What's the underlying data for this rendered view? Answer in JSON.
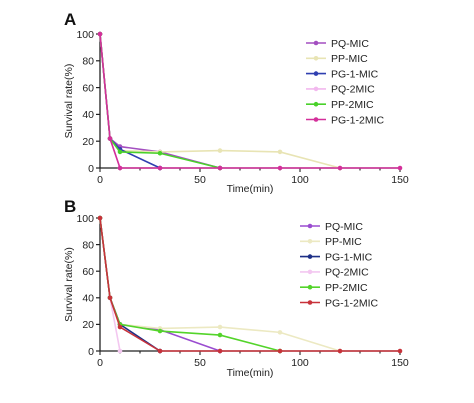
{
  "chart_data": [
    {
      "panel": "A",
      "type": "line",
      "xlabel": "Time(min)",
      "ylabel": "Survival rate(%)",
      "xlim": [
        0,
        150
      ],
      "ylim": [
        0,
        100
      ],
      "x_ticks": [
        0,
        50,
        100,
        150
      ],
      "y_ticks": [
        0,
        20,
        40,
        60,
        80,
        100
      ],
      "legend_position": "top-right",
      "series": [
        {
          "name": "PQ-MIC",
          "color": "#a34fc0",
          "x": [
            0,
            5,
            10,
            30,
            60
          ],
          "y": [
            100,
            22,
            16,
            12,
            0
          ]
        },
        {
          "name": "PP-MIC",
          "color": "#e8e4b4",
          "x": [
            0,
            5,
            10,
            30,
            60,
            90,
            120
          ],
          "y": [
            100,
            22,
            13,
            12,
            13,
            12,
            0
          ]
        },
        {
          "name": "PG-1-MIC",
          "color": "#2f3fb0",
          "x": [
            0,
            5,
            10,
            30
          ],
          "y": [
            100,
            22,
            14,
            0
          ]
        },
        {
          "name": "PQ-2MIC",
          "color": "#f2b8ee",
          "x": [
            0,
            5,
            10
          ],
          "y": [
            100,
            22,
            0
          ]
        },
        {
          "name": "PP-2MIC",
          "color": "#49d12a",
          "x": [
            0,
            5,
            10,
            30,
            60
          ],
          "y": [
            100,
            22,
            12,
            11,
            0
          ]
        },
        {
          "name": "PG-1-2MIC",
          "color": "#d42f9a",
          "x": [
            0,
            5,
            10,
            30,
            60,
            90,
            120,
            150
          ],
          "y": [
            100,
            22,
            0,
            0,
            0,
            0,
            0,
            0
          ]
        }
      ]
    },
    {
      "panel": "B",
      "type": "line",
      "xlabel": "Time(min)",
      "ylabel": "Survival rate(%)",
      "xlim": [
        0,
        150
      ],
      "ylim": [
        0,
        100
      ],
      "x_ticks": [
        0,
        50,
        100,
        150
      ],
      "y_ticks": [
        0,
        20,
        40,
        60,
        80,
        100
      ],
      "legend_position": "top-right",
      "series": [
        {
          "name": "PQ-MIC",
          "color": "#9a4cd0",
          "x": [
            0,
            5,
            10,
            30,
            60
          ],
          "y": [
            100,
            40,
            20,
            16,
            0
          ]
        },
        {
          "name": "PP-MIC",
          "color": "#ece9c2",
          "x": [
            0,
            5,
            10,
            30,
            60,
            90,
            120
          ],
          "y": [
            100,
            40,
            20,
            17,
            18,
            14,
            0
          ]
        },
        {
          "name": "PG-1-MIC",
          "color": "#1d2f86",
          "x": [
            0,
            5,
            10,
            30
          ],
          "y": [
            100,
            40,
            20,
            0
          ]
        },
        {
          "name": "PQ-2MIC",
          "color": "#f3c7f0",
          "x": [
            0,
            5,
            10
          ],
          "y": [
            100,
            40,
            0
          ]
        },
        {
          "name": "PP-2MIC",
          "color": "#53d42a",
          "x": [
            0,
            5,
            10,
            30,
            60,
            90
          ],
          "y": [
            100,
            40,
            20,
            15,
            12,
            0
          ]
        },
        {
          "name": "PG-1-2MIC",
          "color": "#c8323a",
          "x": [
            0,
            5,
            10,
            30,
            60,
            90,
            120,
            150
          ],
          "y": [
            100,
            40,
            18,
            0,
            0,
            0,
            0,
            0
          ]
        }
      ]
    }
  ]
}
